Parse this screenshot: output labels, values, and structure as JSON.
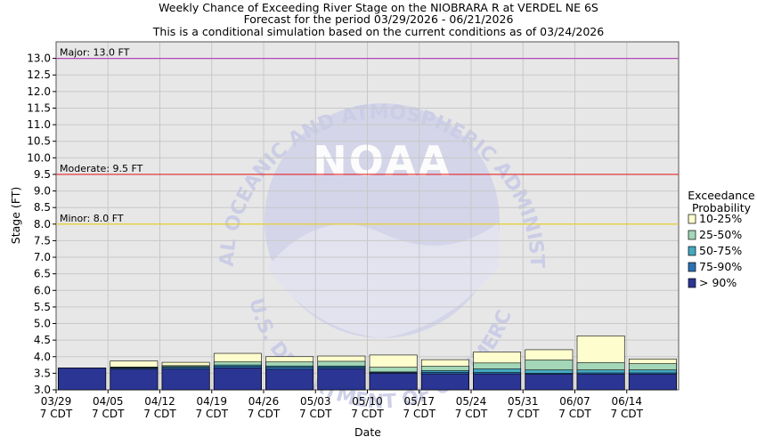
{
  "chart_data": {
    "type": "bar",
    "title_lines": [
      "Weekly Chance of Exceeding River Stage on the NIOBRARA R at VERDEL NE 6S",
      "Forecast for the period 03/29/2026 - 06/21/2026",
      "This is a conditional simulation based on the current conditions as of 03/24/2026"
    ],
    "xlabel": "Date",
    "ylabel": "Stage (FT)",
    "ylim": [
      3.0,
      13.5
    ],
    "yticks": [
      3.0,
      3.5,
      4.0,
      4.5,
      5.0,
      5.5,
      6.0,
      6.5,
      7.0,
      7.5,
      8.0,
      8.5,
      9.0,
      9.5,
      10.0,
      10.5,
      11.0,
      11.5,
      12.0,
      12.5,
      13.0
    ],
    "categories": [
      "03/29",
      "04/05",
      "04/12",
      "04/19",
      "04/26",
      "05/03",
      "05/10",
      "05/17",
      "05/24",
      "05/31",
      "06/07",
      "06/14"
    ],
    "category_sublabel": "7 CDT",
    "series": [
      {
        "name": "> 90%",
        "color": "#2b3593",
        "values": [
          3.66,
          3.62,
          3.63,
          3.66,
          3.62,
          3.64,
          3.5,
          3.48,
          3.48,
          3.47,
          3.47,
          3.47
        ]
      },
      {
        "name": "75-90%",
        "color": "#2a72b5",
        "values": [
          3.66,
          3.65,
          3.68,
          3.71,
          3.68,
          3.69,
          3.52,
          3.53,
          3.52,
          3.5,
          3.51,
          3.51
        ]
      },
      {
        "name": "50-75%",
        "color": "#45a9c1",
        "values": [
          3.66,
          3.67,
          3.7,
          3.75,
          3.72,
          3.72,
          3.54,
          3.58,
          3.63,
          3.6,
          3.6,
          3.6
        ]
      },
      {
        "name": "25-50%",
        "color": "#a3d7b8",
        "values": [
          3.66,
          3.69,
          3.73,
          3.84,
          3.84,
          3.86,
          3.68,
          3.71,
          3.81,
          3.9,
          3.82,
          3.79
        ]
      },
      {
        "name": "10-25%",
        "color": "#fdfdcd",
        "values": [
          3.66,
          3.87,
          3.83,
          4.1,
          4.0,
          4.02,
          4.05,
          3.91,
          4.14,
          4.21,
          4.63,
          3.93
        ]
      }
    ],
    "thresholds": [
      {
        "label": "Major: 13.0 FT",
        "value": 13.0,
        "color": "#b648b6"
      },
      {
        "label": "Moderate: 9.5 FT",
        "value": 9.5,
        "color": "#e0242b"
      },
      {
        "label": "Minor: 8.0 FT",
        "value": 8.0,
        "color": "#e8d21f"
      }
    ],
    "legend": {
      "title_lines": [
        "Exceedance",
        "Probability"
      ],
      "placement": "right",
      "entries": [
        {
          "label": "10-25%",
          "color": "#fdfdcd"
        },
        {
          "label": "25-50%",
          "color": "#a3d7b8"
        },
        {
          "label": "50-75%",
          "color": "#45a9c1"
        },
        {
          "label": "75-90%",
          "color": "#2a72b5"
        },
        {
          "label": "> 90%",
          "color": "#2b3593"
        }
      ]
    },
    "grid": {
      "x": true,
      "y": true,
      "color": "#c8c8c8"
    },
    "plot_background": "#e7e7e7",
    "watermark": {
      "text_arc_top": "NATIONAL OCEANIC AND ATMOSPHERIC ADMINISTRATION",
      "text_arc_bottom": "U.S. DEPARTMENT OF COMMERCE",
      "logo_text": "NOAA",
      "color": "#c9cbe6"
    }
  }
}
